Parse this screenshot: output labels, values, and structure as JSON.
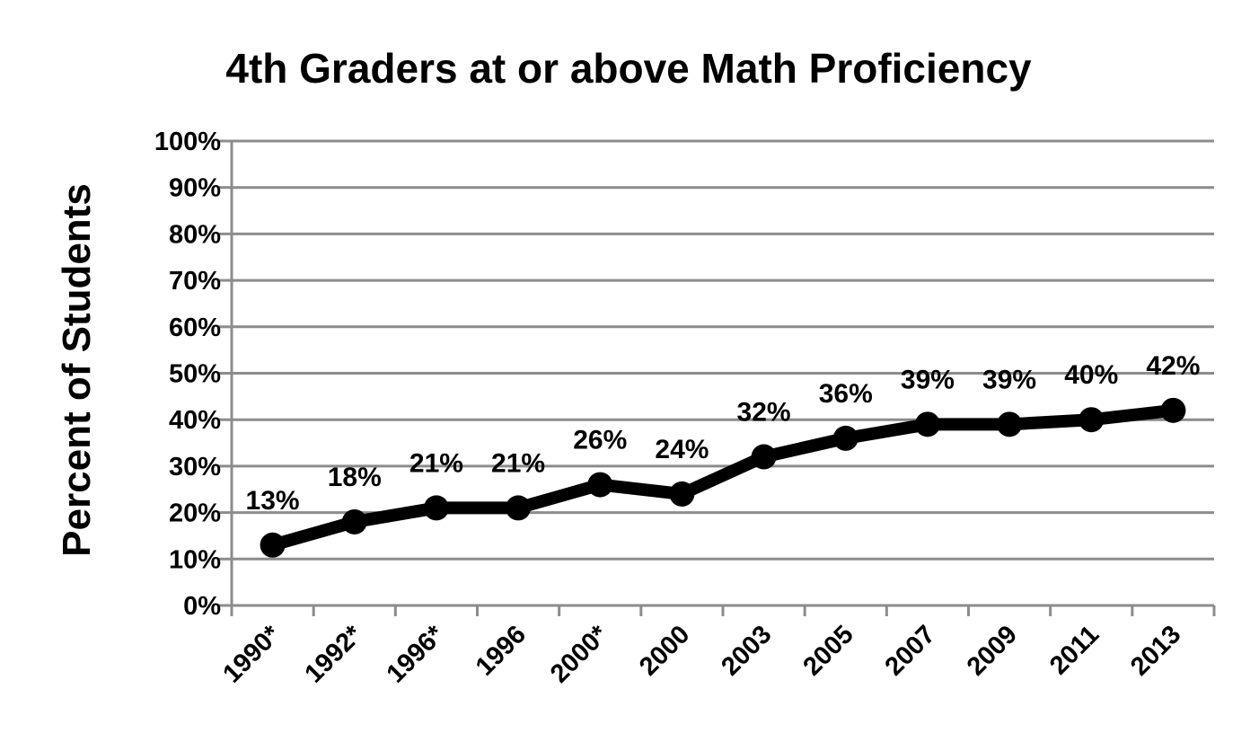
{
  "chart_data": {
    "type": "line",
    "title": "4th Graders at or above Math Proficiency",
    "xlabel": "",
    "ylabel": "Percent of Students",
    "categories": [
      "1990*",
      "1992*",
      "1996*",
      "1996",
      "2000*",
      "2000",
      "2003",
      "2005",
      "2007",
      "2009",
      "2011",
      "2013"
    ],
    "series": [
      {
        "values": [
          13,
          18,
          21,
          21,
          26,
          24,
          32,
          36,
          39,
          39,
          40,
          42
        ]
      }
    ],
    "data_labels": [
      "13%",
      "18%",
      "21%",
      "21%",
      "26%",
      "24%",
      "32%",
      "36%",
      "39%",
      "39%",
      "40%",
      "42%"
    ],
    "yticks": [
      0,
      10,
      20,
      30,
      40,
      50,
      60,
      70,
      80,
      90,
      100
    ],
    "ytick_labels": [
      "0%",
      "10%",
      "20%",
      "30%",
      "40%",
      "50%",
      "60%",
      "70%",
      "80%",
      "90%",
      "100%"
    ],
    "ylim": [
      0,
      100
    ],
    "grid": true,
    "legend": "none",
    "colors": {
      "line": "#000000",
      "grid": "#8c8c8c"
    }
  }
}
